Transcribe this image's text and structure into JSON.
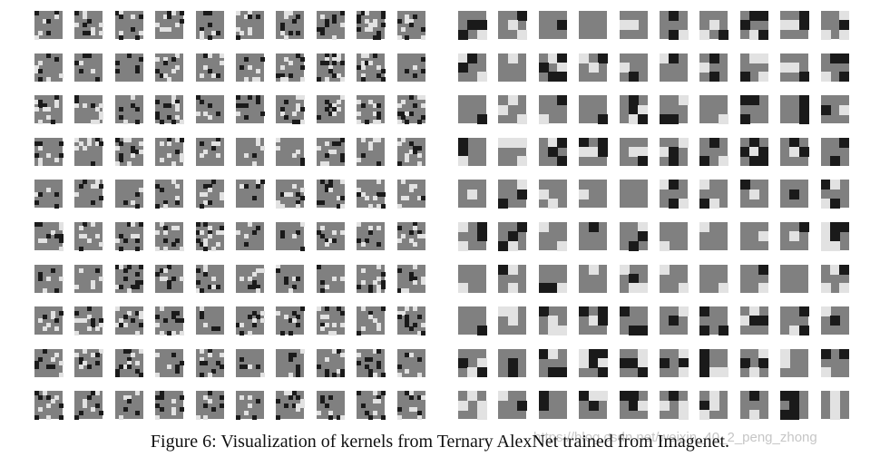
{
  "figure": {
    "caption": "Figure 6: Visualization of kernels from Ternary AlexNet trained from Imagenet.",
    "watermark": "https://blog.csdn.net/weixin_40_2_peng_zhong",
    "panels": [
      "first-layer-kernels",
      "second-layer-kernels"
    ],
    "rows": 10,
    "cols": 10,
    "kernel_grid": 3,
    "colors": {
      "negative": "#1a1a1a",
      "zero": "#808080",
      "positive": "#e2e2e2",
      "background": "#ffffff"
    }
  }
}
